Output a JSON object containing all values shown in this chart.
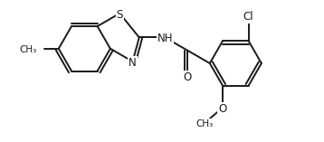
{
  "bg_color": "#ffffff",
  "line_color": "#1a1a1a",
  "text_color": "#1a1a1a",
  "line_width": 1.4,
  "font_size": 8.5,
  "xlim": [
    -1.0,
    9.5
  ],
  "ylim": [
    -2.2,
    3.2
  ]
}
